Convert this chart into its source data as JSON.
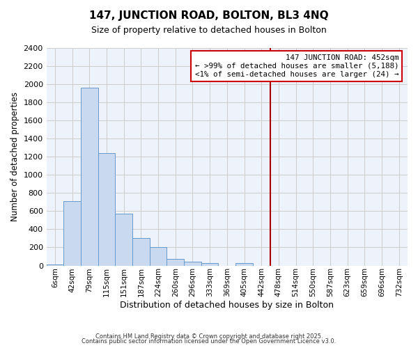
{
  "title": "147, JUNCTION ROAD, BOLTON, BL3 4NQ",
  "subtitle": "Size of property relative to detached houses in Bolton",
  "xlabel": "Distribution of detached houses by size in Bolton",
  "ylabel": "Number of detached properties",
  "bin_labels": [
    "6sqm",
    "42sqm",
    "79sqm",
    "115sqm",
    "151sqm",
    "187sqm",
    "224sqm",
    "260sqm",
    "296sqm",
    "333sqm",
    "369sqm",
    "405sqm",
    "442sqm",
    "478sqm",
    "514sqm",
    "550sqm",
    "587sqm",
    "623sqm",
    "659sqm",
    "696sqm",
    "732sqm"
  ],
  "bar_values": [
    10,
    710,
    1960,
    1240,
    575,
    300,
    200,
    75,
    40,
    30,
    0,
    30,
    0,
    0,
    0,
    0,
    0,
    0,
    0,
    0,
    0
  ],
  "bar_color": "#c9d9f0",
  "bar_edge_color": "#6699cc",
  "vline_x": 12,
  "vline_color": "#aa0000",
  "ylim": [
    0,
    2400
  ],
  "yticks": [
    0,
    200,
    400,
    600,
    800,
    1000,
    1200,
    1400,
    1600,
    1800,
    2000,
    2200,
    2400
  ],
  "annotation_text": "147 JUNCTION ROAD: 452sqm\n← >99% of detached houses are smaller (5,188)\n<1% of semi-detached houses are larger (24) →",
  "annotation_box_color": "#ffffff",
  "annotation_box_edge": "#cc0000",
  "background_color": "#eef2fa",
  "grid_color": "#cccccc",
  "footnote1": "Contains HM Land Registry data © Crown copyright and database right 2025.",
  "footnote2": "Contains public sector information licensed under the Open Government Licence v3.0."
}
